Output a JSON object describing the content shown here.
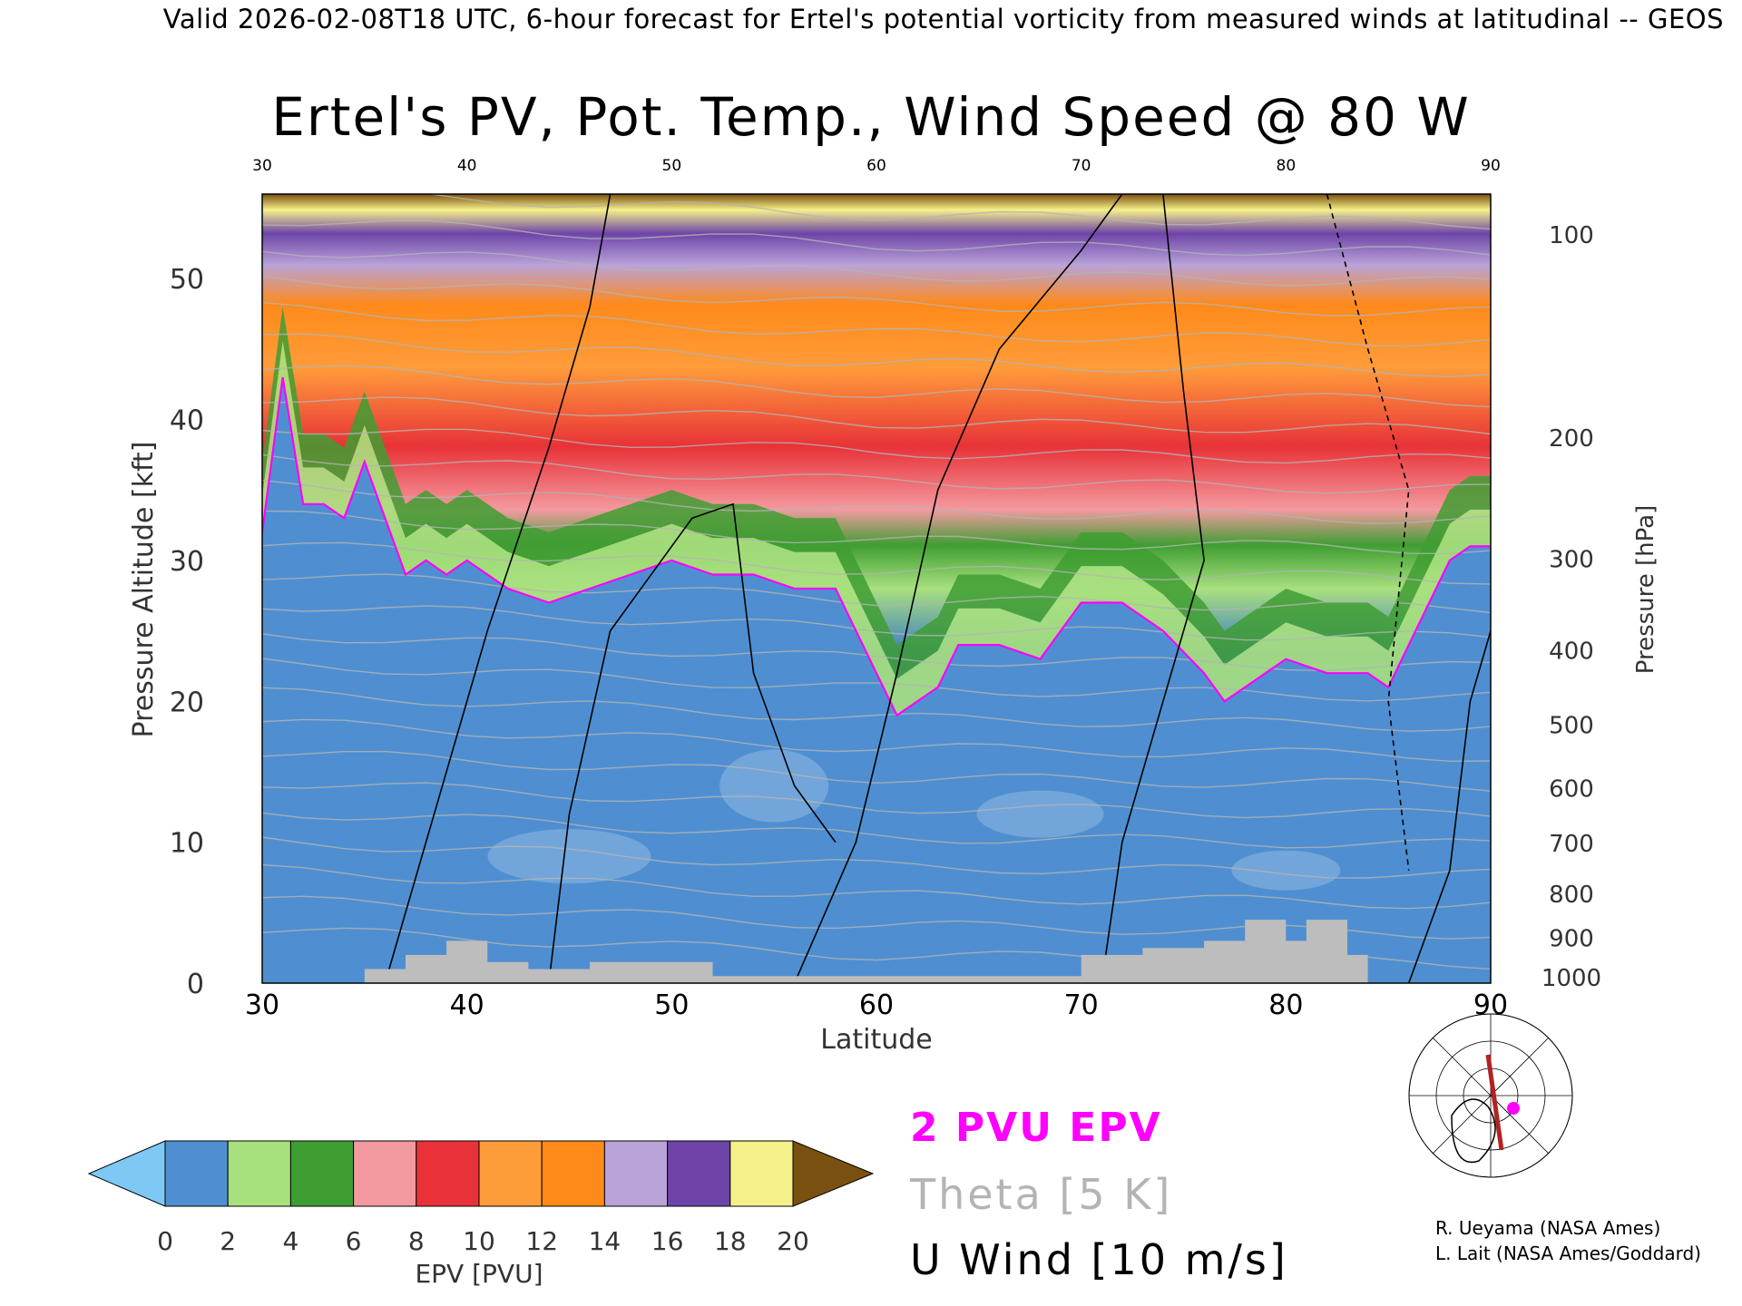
{
  "header_text": "Valid 2026-02-08T18 UTC, 6-hour forecast for Ertel's potential vorticity from measured winds at latitudinal -- GEOS",
  "chart_data": {
    "type": "heatmap",
    "title": "Ertel's PV, Pot. Temp., Wind Speed @ 80 W",
    "xlabel": "Latitude",
    "ylabel": "Pressure Altitude [kft]",
    "ylabel_right": "Pressure [hPa]",
    "xlim": [
      30,
      90
    ],
    "ylim": [
      0,
      56
    ],
    "x_ticks": [
      "30",
      "40",
      "50",
      "60",
      "70",
      "80",
      "90"
    ],
    "x_ticks_top": [
      "30",
      "40",
      "50",
      "60",
      "70",
      "80",
      "90"
    ],
    "y_ticks": [
      "0",
      "10",
      "20",
      "30",
      "40",
      "50"
    ],
    "pressure_ticks": [
      {
        "label": "100",
        "alt_kft": 53.1
      },
      {
        "label": "200",
        "alt_kft": 38.7
      },
      {
        "label": "300",
        "alt_kft": 30.1
      },
      {
        "label": "400",
        "alt_kft": 23.6
      },
      {
        "label": "500",
        "alt_kft": 18.3
      },
      {
        "label": "600",
        "alt_kft": 13.8
      },
      {
        "label": "700",
        "alt_kft": 9.9
      },
      {
        "label": "800",
        "alt_kft": 6.3
      },
      {
        "label": "900",
        "alt_kft": 3.2
      },
      {
        "label": "1000",
        "alt_kft": 0.4
      }
    ],
    "tropopause_2pvu_kft": {
      "lat": [
        30,
        31,
        32,
        33,
        34,
        35,
        36,
        37,
        38,
        39,
        40,
        42,
        44,
        46,
        48,
        50,
        52,
        54,
        56,
        58,
        60,
        61,
        62,
        63,
        64,
        66,
        68,
        70,
        72,
        74,
        76,
        77,
        78,
        80,
        82,
        84,
        85,
        86,
        87,
        88,
        89,
        90
      ],
      "alt": [
        32,
        43,
        34,
        34,
        33,
        37,
        33,
        29,
        30,
        29,
        30,
        28,
        27,
        28,
        29,
        30,
        29,
        29,
        28,
        28,
        22,
        19,
        20,
        21,
        24,
        24,
        23,
        27,
        27,
        25,
        22,
        20,
        21,
        23,
        22,
        22,
        21,
        24,
        27,
        30,
        31,
        31
      ]
    },
    "pv_levels_pvu": [
      0,
      2,
      4,
      6,
      8,
      10,
      12,
      14,
      16,
      18,
      20
    ],
    "colorbar": {
      "label": "EPV [PVU]",
      "ticks": [
        "0",
        "2",
        "4",
        "6",
        "8",
        "10",
        "12",
        "14",
        "16",
        "18",
        "20"
      ],
      "under_color": "#7ec8f5",
      "over_color": "#7a5010",
      "colors": [
        "#4f8fd1",
        "#a9e07e",
        "#3f9e32",
        "#f39aa0",
        "#e83238",
        "#ff9c3a",
        "#ff8a1a",
        "#b9a3d9",
        "#6e44a8",
        "#f6f08a"
      ]
    },
    "legend": [
      {
        "label": "2 PVU EPV",
        "color": "#ff00ff"
      },
      {
        "label": "Theta [5 K]",
        "color": "#b4b4b4"
      },
      {
        "label": "U Wind [10 m/s]",
        "color": "#000000"
      }
    ]
  },
  "credits": [
    "R. Ueyama (NASA Ames)",
    "L. Lait (NASA Ames/Goddard)"
  ]
}
